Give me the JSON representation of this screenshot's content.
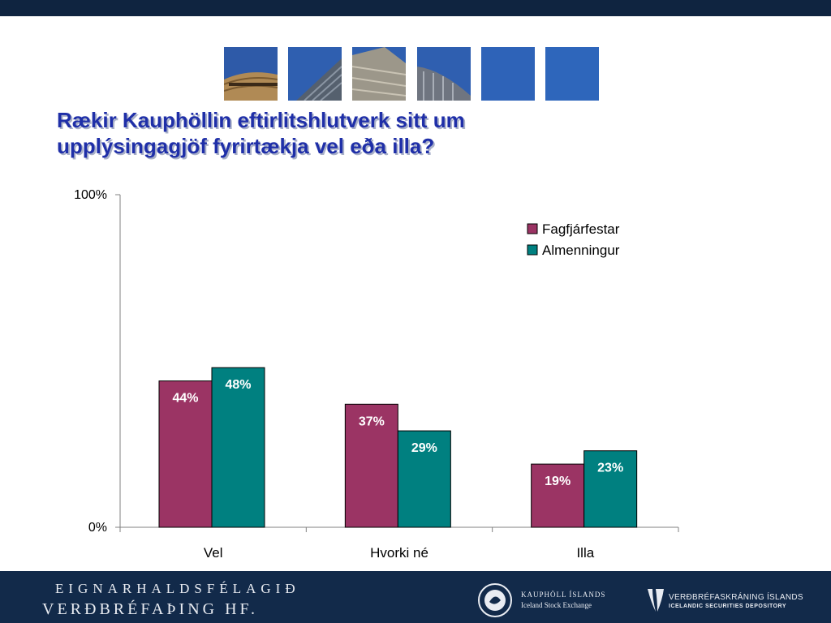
{
  "slide": {
    "title_line1": "Rækir Kauphöllin eftirlitshlutverk sitt um",
    "title_line2": "upplýsingagjöf fyrirtækja vel eða illa?"
  },
  "colors": {
    "header_bar": "#0f2440",
    "footer_bar": "#122a4a",
    "title": "#1f2fa8",
    "series_1": "#9b3464",
    "series_2": "#008080"
  },
  "chart_data": {
    "type": "bar",
    "categories": [
      "Vel",
      "Hvorki né",
      "Illa"
    ],
    "series": [
      {
        "name": "Fagfjárfestar",
        "values": [
          44,
          37,
          19
        ],
        "labels": [
          "44%",
          "37%",
          "19%"
        ]
      },
      {
        "name": "Almenningur",
        "values": [
          48,
          29,
          23
        ],
        "labels": [
          "48%",
          "29%",
          "23%"
        ]
      }
    ],
    "ylim": [
      0,
      100
    ],
    "yticks": [
      "0%",
      "100%"
    ],
    "grid": false,
    "legend": "top-right"
  },
  "footer": {
    "company_line1": "EIGNARHALDSFÉLAGIÐ",
    "company_line2": "VERÐBRÉFAÞING HF.",
    "exchange_name": "KAUPHÖLL ÍSLANDS",
    "exchange_sub": "Iceland Stock Exchange",
    "depository_name": "VERÐBRÉFASKRÁNING ÍSLANDS",
    "depository_sub": "ICELANDIC SECURITIES DEPOSITORY"
  }
}
